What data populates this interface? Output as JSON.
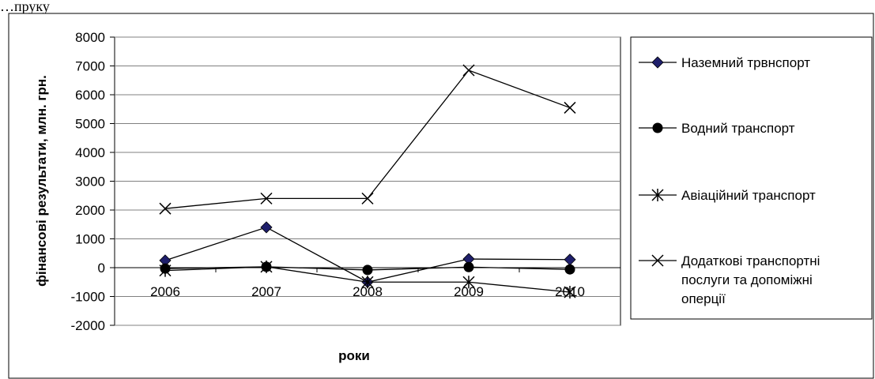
{
  "header_text": "…пруку",
  "chart_data": {
    "type": "line",
    "title": "",
    "xlabel": "роки",
    "ylabel": "фінансові результати, млн. грн.",
    "ylim": [
      -2000,
      8000
    ],
    "ytick_step": 1000,
    "yticks": [
      "8000",
      "7000",
      "6000",
      "5000",
      "4000",
      "3000",
      "2000",
      "1000",
      "0",
      "-1000",
      "-2000"
    ],
    "categories": [
      "2006",
      "2007",
      "2008",
      "2009",
      "2010"
    ],
    "grid": true,
    "legend_position": "right",
    "series": [
      {
        "name": "Наземний трвнспорт",
        "marker": "diamond",
        "color": "#1f1f6b",
        "values": [
          250,
          1400,
          -500,
          300,
          280
        ]
      },
      {
        "name": "Водний транспорт",
        "marker": "circle",
        "color": "#000000",
        "values": [
          -30,
          30,
          -80,
          20,
          -60
        ]
      },
      {
        "name": "Авіаційний транспорт",
        "marker": "asterisk",
        "color": "#000000",
        "values": [
          -100,
          30,
          -500,
          -500,
          -850
        ]
      },
      {
        "name": "Додаткові транспортні послуги та допоміжні оперції",
        "marker": "x",
        "color": "#000000",
        "values": [
          2050,
          2400,
          2400,
          6850,
          5550
        ]
      }
    ]
  }
}
